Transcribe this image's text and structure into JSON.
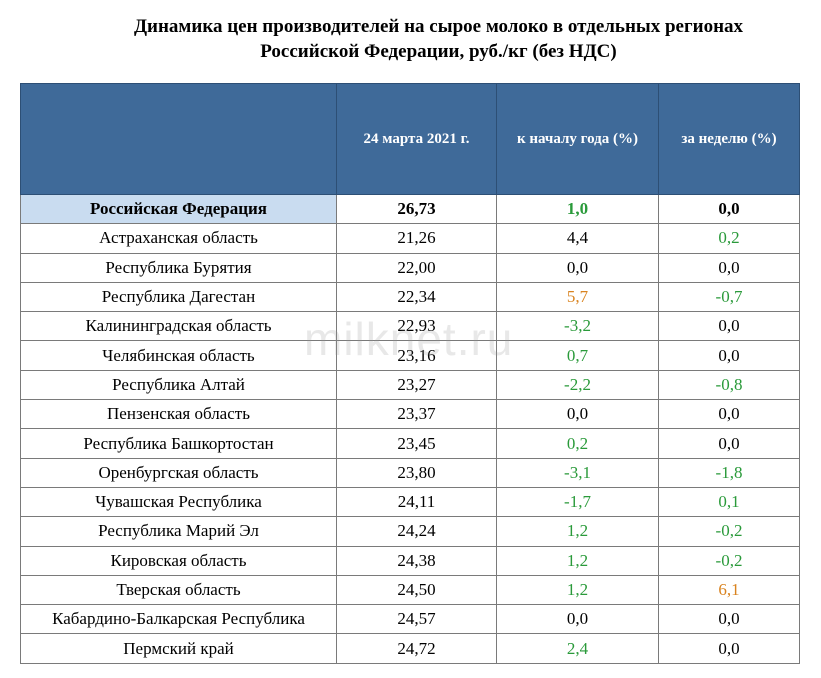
{
  "title": {
    "line1": "Динамика цен производителей на сырое молоко в отдельных регионах",
    "line2": "Российской Федерации, руб./кг (без НДС)"
  },
  "watermark": "milknet.ru",
  "colors": {
    "header_bg": "#3f6a99",
    "highlight_bg": "#c9dcf0",
    "positive_change": "#d9831f",
    "negative_change": "#2a9a3a"
  },
  "table": {
    "headers": [
      "",
      "24 марта 2021 г.",
      "к началу года (%)",
      "за неделю (%)"
    ],
    "rows": [
      {
        "region": "Российская Федерация",
        "price": "26,73",
        "ytd": "1,0",
        "ytd_color": "green",
        "week": "0,0",
        "week_color": "black",
        "highlight": true
      },
      {
        "region": "Астраханская область",
        "price": "21,26",
        "ytd": "4,4",
        "ytd_color": "black",
        "week": "0,2",
        "week_color": "green"
      },
      {
        "region": "Республика Бурятия",
        "price": "22,00",
        "ytd": "0,0",
        "ytd_color": "black",
        "week": "0,0",
        "week_color": "black"
      },
      {
        "region": "Республика Дагестан",
        "price": "22,34",
        "ytd": "5,7",
        "ytd_color": "orange",
        "week": "-0,7",
        "week_color": "green"
      },
      {
        "region": "Калининградская область",
        "price": "22,93",
        "ytd": "-3,2",
        "ytd_color": "green",
        "week": "0,0",
        "week_color": "black"
      },
      {
        "region": "Челябинская область",
        "price": "23,16",
        "ytd": "0,7",
        "ytd_color": "green",
        "week": "0,0",
        "week_color": "black"
      },
      {
        "region": "Республика Алтай",
        "price": "23,27",
        "ytd": "-2,2",
        "ytd_color": "green",
        "week": "-0,8",
        "week_color": "green"
      },
      {
        "region": "Пензенская область",
        "price": "23,37",
        "ytd": "0,0",
        "ytd_color": "black",
        "week": "0,0",
        "week_color": "black"
      },
      {
        "region": "Республика Башкортостан",
        "price": "23,45",
        "ytd": "0,2",
        "ytd_color": "green",
        "week": "0,0",
        "week_color": "black"
      },
      {
        "region": "Оренбургская область",
        "price": "23,80",
        "ytd": "-3,1",
        "ytd_color": "green",
        "week": "-1,8",
        "week_color": "green"
      },
      {
        "region": "Чувашская Республика",
        "price": "24,11",
        "ytd": "-1,7",
        "ytd_color": "green",
        "week": "0,1",
        "week_color": "green"
      },
      {
        "region": "Республика Марий Эл",
        "price": "24,24",
        "ytd": "1,2",
        "ytd_color": "green",
        "week": "-0,2",
        "week_color": "green"
      },
      {
        "region": "Кировская область",
        "price": "24,38",
        "ytd": "1,2",
        "ytd_color": "green",
        "week": "-0,2",
        "week_color": "green"
      },
      {
        "region": "Тверская область",
        "price": "24,50",
        "ytd": "1,2",
        "ytd_color": "green",
        "week": "6,1",
        "week_color": "orange"
      },
      {
        "region": "Кабардино-Балкарская Республика",
        "price": "24,57",
        "ytd": "0,0",
        "ytd_color": "black",
        "week": "0,0",
        "week_color": "black"
      },
      {
        "region": "Пермский край",
        "price": "24,72",
        "ytd": "2,4",
        "ytd_color": "green",
        "week": "0,0",
        "week_color": "black"
      }
    ]
  }
}
